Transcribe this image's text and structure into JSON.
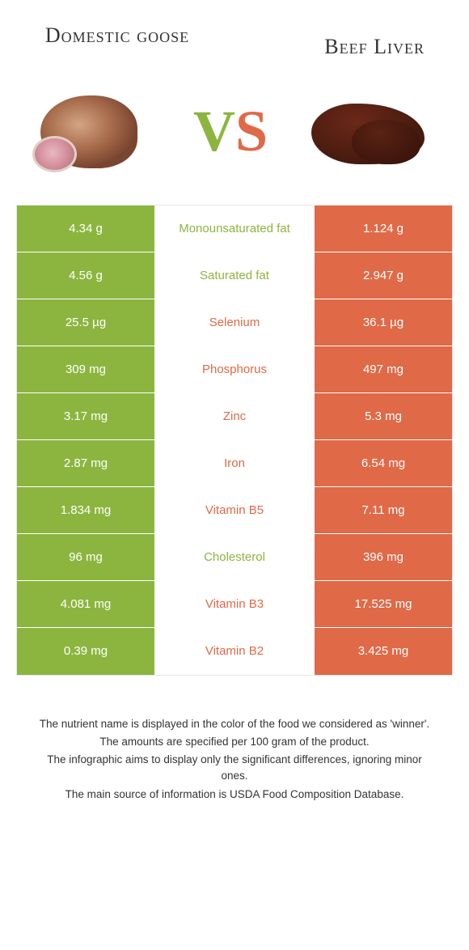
{
  "header": {
    "left_title": "Domestic goose",
    "right_title": "Beef Liver"
  },
  "vs": {
    "v": "V",
    "s": "S"
  },
  "colors": {
    "left": "#8cb53f",
    "right": "#e06947",
    "background": "#ffffff"
  },
  "table": {
    "rows": [
      {
        "left": "4.34 g",
        "label": "Monounsaturated fat",
        "right": "1.124 g",
        "winner": "left"
      },
      {
        "left": "4.56 g",
        "label": "Saturated fat",
        "right": "2.947 g",
        "winner": "left"
      },
      {
        "left": "25.5 µg",
        "label": "Selenium",
        "right": "36.1 µg",
        "winner": "right"
      },
      {
        "left": "309 mg",
        "label": "Phosphorus",
        "right": "497 mg",
        "winner": "right"
      },
      {
        "left": "3.17 mg",
        "label": "Zinc",
        "right": "5.3 mg",
        "winner": "right"
      },
      {
        "left": "2.87 mg",
        "label": "Iron",
        "right": "6.54 mg",
        "winner": "right"
      },
      {
        "left": "1.834 mg",
        "label": "Vitamin B5",
        "right": "7.11 mg",
        "winner": "right"
      },
      {
        "left": "96 mg",
        "label": "Cholesterol",
        "right": "396 mg",
        "winner": "left"
      },
      {
        "left": "4.081 mg",
        "label": "Vitamin B3",
        "right": "17.525 mg",
        "winner": "right"
      },
      {
        "left": "0.39 mg",
        "label": "Vitamin B2",
        "right": "3.425 mg",
        "winner": "right"
      }
    ]
  },
  "footer": {
    "line1": "The nutrient name is displayed in the color of the food we considered as 'winner'.",
    "line2": "The amounts are specified per 100 gram of the product.",
    "line3": "The infographic aims to display only the significant differences, ignoring minor ones.",
    "line4": "The main source of information is USDA Food Composition Database."
  }
}
